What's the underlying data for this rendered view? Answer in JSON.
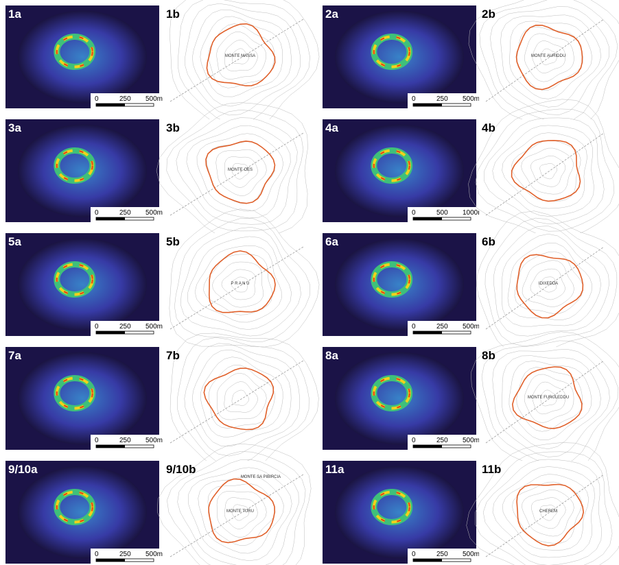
{
  "panels": [
    {
      "a": {
        "label": "1a",
        "scale": [
          "0",
          "250",
          "500m"
        ]
      },
      "b": {
        "label": "1b",
        "names": [
          "MONTE MASSA"
        ]
      }
    },
    {
      "a": {
        "label": "2a",
        "scale": [
          "0",
          "250",
          "500m"
        ]
      },
      "b": {
        "label": "2b",
        "names": [
          "MONTE AURIDDU"
        ]
      }
    },
    {
      "a": {
        "label": "3a",
        "scale": [
          "0",
          "250",
          "500m"
        ]
      },
      "b": {
        "label": "3b",
        "names": [
          "MONTE OES"
        ]
      }
    },
    {
      "a": {
        "label": "4a",
        "scale": [
          "0",
          "500",
          "1000m"
        ]
      },
      "b": {
        "label": "4b",
        "names": []
      }
    },
    {
      "a": {
        "label": "5a",
        "scale": [
          "0",
          "250",
          "500m"
        ]
      },
      "b": {
        "label": "5b",
        "names": [
          "P R A N U"
        ]
      }
    },
    {
      "a": {
        "label": "6a",
        "scale": [
          "0",
          "250",
          "500m"
        ]
      },
      "b": {
        "label": "6b",
        "names": [
          "IDIXEDDA"
        ]
      }
    },
    {
      "a": {
        "label": "7a",
        "scale": [
          "0",
          "250",
          "500m"
        ]
      },
      "b": {
        "label": "7b",
        "names": []
      }
    },
    {
      "a": {
        "label": "8a",
        "scale": [
          "0",
          "250",
          "500m"
        ]
      },
      "b": {
        "label": "8b",
        "names": [
          "MONTE FURULEDDU"
        ]
      }
    },
    {
      "a": {
        "label": "9/10a",
        "scale": [
          "0",
          "250",
          "500m"
        ]
      },
      "b": {
        "label": "9/10b",
        "names": [
          "MONTE TURU",
          "MONTE SA PIBIRCIA"
        ]
      }
    },
    {
      "a": {
        "label": "11a",
        "scale": [
          "0",
          "250",
          "500m"
        ]
      },
      "b": {
        "label": "11b",
        "names": [
          "CHEREM"
        ]
      }
    }
  ]
}
